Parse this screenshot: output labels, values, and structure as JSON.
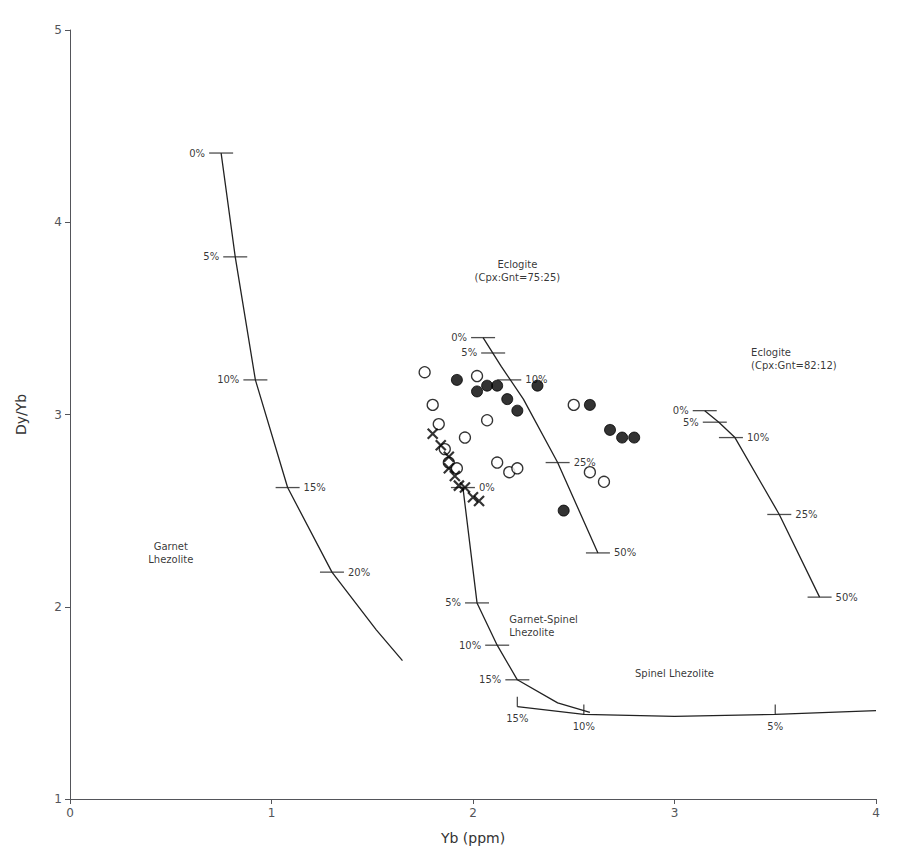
{
  "chart_data": {
    "type": "scatter",
    "xlabel": "Yb (ppm)",
    "ylabel": "Dy/Yb",
    "xlim": [
      0,
      4
    ],
    "ylim": [
      1,
      5
    ],
    "xticks": [
      0,
      1,
      2,
      3,
      4
    ],
    "yticks": [
      1,
      2,
      3,
      4,
      5
    ],
    "grid": false,
    "series": [
      {
        "type": "scatter",
        "marker": "circle_open",
        "color": "#000000",
        "values": [
          [
            1.76,
            3.22
          ],
          [
            1.8,
            3.05
          ],
          [
            1.83,
            2.95
          ],
          [
            1.86,
            2.82
          ],
          [
            1.88,
            2.75
          ],
          [
            1.92,
            2.72
          ],
          [
            1.96,
            2.88
          ],
          [
            2.02,
            3.2
          ],
          [
            2.07,
            2.97
          ],
          [
            2.12,
            2.75
          ],
          [
            2.18,
            2.7
          ],
          [
            2.22,
            2.72
          ],
          [
            2.5,
            3.05
          ],
          [
            2.58,
            2.7
          ],
          [
            2.65,
            2.65
          ]
        ]
      },
      {
        "type": "scatter",
        "marker": "circle",
        "color": "#000000",
        "values": [
          [
            1.92,
            3.18
          ],
          [
            2.02,
            3.12
          ],
          [
            2.07,
            3.15
          ],
          [
            2.12,
            3.15
          ],
          [
            2.17,
            3.08
          ],
          [
            2.22,
            3.02
          ],
          [
            2.32,
            3.15
          ],
          [
            2.45,
            2.5
          ],
          [
            2.58,
            3.05
          ],
          [
            2.68,
            2.92
          ],
          [
            2.74,
            2.88
          ],
          [
            2.8,
            2.88
          ]
        ]
      },
      {
        "type": "scatter",
        "marker": "x",
        "color": "#000000",
        "values": [
          [
            1.8,
            2.9
          ],
          [
            1.84,
            2.84
          ],
          [
            1.88,
            2.78
          ],
          [
            1.88,
            2.72
          ],
          [
            1.91,
            2.68
          ],
          [
            1.93,
            2.63
          ],
          [
            1.96,
            2.62
          ],
          [
            2.0,
            2.57
          ],
          [
            2.03,
            2.55
          ]
        ]
      },
      {
        "type": "line",
        "color": "#222222",
        "x": [
          0.75,
          0.82,
          0.92,
          1.08,
          1.3,
          1.52,
          1.65
        ],
        "values": [
          4.36,
          3.82,
          3.18,
          2.62,
          2.18,
          1.88,
          1.72
        ],
        "ticks": [
          {
            "x": 0.75,
            "y": 4.36,
            "label": "0%",
            "side": "left"
          },
          {
            "x": 0.82,
            "y": 3.82,
            "label": "5%",
            "side": "left"
          },
          {
            "x": 0.92,
            "y": 3.18,
            "label": "10%",
            "side": "left"
          },
          {
            "x": 1.08,
            "y": 2.62,
            "label": "15%",
            "side": "right"
          },
          {
            "x": 1.3,
            "y": 2.18,
            "label": "20%",
            "side": "right"
          }
        ],
        "annotation": {
          "x": 0.5,
          "y": 2.28,
          "text": "Garnet\nLhezolite"
        }
      },
      {
        "type": "line",
        "color": "#222222",
        "x": [
          1.95,
          2.02,
          2.12,
          2.22,
          2.42,
          2.58
        ],
        "values": [
          2.62,
          2.02,
          1.8,
          1.62,
          1.5,
          1.45
        ],
        "ticks": [
          {
            "x": 1.95,
            "y": 2.62,
            "label": "0%",
            "side": "right"
          },
          {
            "x": 2.02,
            "y": 2.02,
            "label": "5%",
            "side": "left"
          },
          {
            "x": 2.12,
            "y": 1.8,
            "label": "10%",
            "side": "left"
          },
          {
            "x": 2.22,
            "y": 1.62,
            "label": "15%",
            "side": "left"
          }
        ],
        "annotation": {
          "x": 2.18,
          "y": 1.9,
          "text": "Garnet-Spinel\nLhezolite"
        }
      },
      {
        "type": "line",
        "color": "#222222",
        "x": [
          2.22,
          2.55,
          3.0,
          3.5,
          4.0
        ],
        "values": [
          1.48,
          1.44,
          1.43,
          1.44,
          1.46
        ],
        "ticks": [
          {
            "x": 2.22,
            "y": 1.48,
            "label": "15%"
          },
          {
            "x": 2.55,
            "y": 1.44,
            "label": "10%"
          },
          {
            "x": 3.5,
            "y": 1.44,
            "label": "5%"
          }
        ],
        "annotation": {
          "x": 3.0,
          "y": 1.62,
          "text": "Spinel Lhezolite"
        }
      },
      {
        "type": "line",
        "color": "#222222",
        "x": [
          2.05,
          2.14,
          2.25,
          2.42,
          2.62
        ],
        "values": [
          3.4,
          3.25,
          3.08,
          2.75,
          2.28
        ],
        "ticks": [
          {
            "x": 2.05,
            "y": 3.4,
            "label": "0%",
            "side": "left"
          },
          {
            "x": 2.1,
            "y": 3.32,
            "label": "5%",
            "side": "left"
          },
          {
            "x": 2.18,
            "y": 3.18,
            "label": "10%",
            "side": "right"
          },
          {
            "x": 2.42,
            "y": 2.75,
            "label": "25%",
            "side": "right"
          },
          {
            "x": 2.62,
            "y": 2.28,
            "label": "50%",
            "side": "right"
          }
        ],
        "annotation": {
          "x": 2.22,
          "y": 3.68,
          "text": "Eclogite\n(Cpx:Gnt=75:25)"
        }
      },
      {
        "type": "line",
        "color": "#222222",
        "x": [
          3.15,
          3.22,
          3.3,
          3.52,
          3.72
        ],
        "values": [
          3.02,
          2.96,
          2.88,
          2.48,
          2.05
        ],
        "ticks": [
          {
            "x": 3.15,
            "y": 3.02,
            "label": "0%",
            "side": "left"
          },
          {
            "x": 3.2,
            "y": 2.96,
            "label": "5%",
            "side": "left"
          },
          {
            "x": 3.28,
            "y": 2.88,
            "label": "10%",
            "side": "right"
          },
          {
            "x": 3.52,
            "y": 2.48,
            "label": "25%",
            "side": "right"
          },
          {
            "x": 3.72,
            "y": 2.05,
            "label": "50%",
            "side": "right"
          }
        ],
        "annotation": {
          "x": 3.38,
          "y": 3.22,
          "text": "Eclogite\n(Cpx:Gnt=82:12)"
        }
      }
    ]
  }
}
